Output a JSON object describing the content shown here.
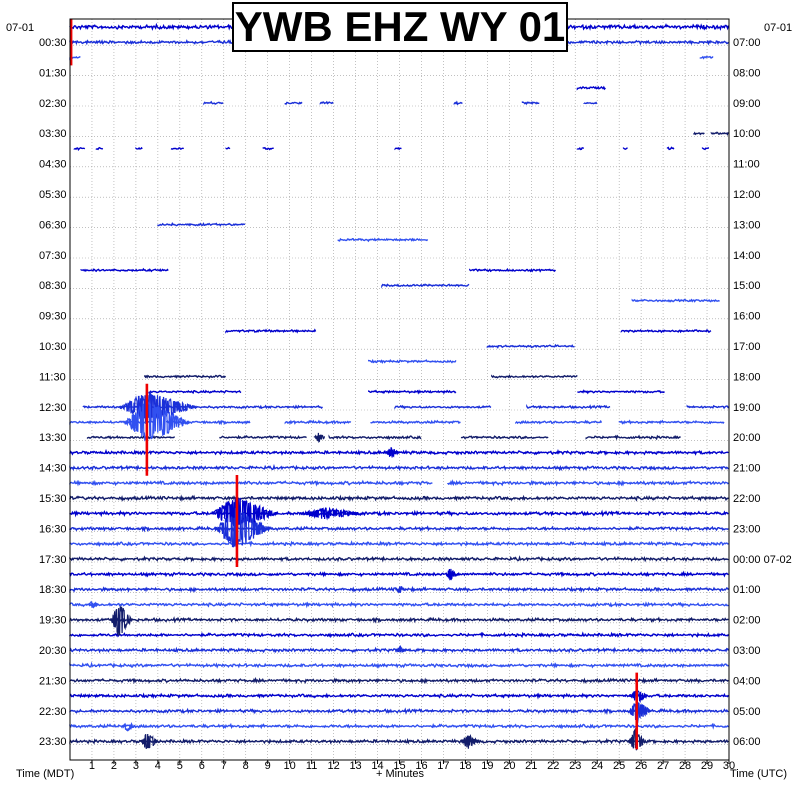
{
  "chart_data": {
    "type": "line",
    "title": "YWB EHZ WY 01",
    "left_axis_label": "Time (MDT)",
    "right_axis_label": "Time (UTC)",
    "bottom_axis_label": "+ Minutes",
    "left_date_label": "07-01",
    "right_date_label": "07-01",
    "x_ticks": [
      "1",
      "2",
      "3",
      "4",
      "5",
      "6",
      "7",
      "8",
      "9",
      "10",
      "11",
      "12",
      "13",
      "14",
      "15",
      "16",
      "17",
      "18",
      "19",
      "20",
      "21",
      "22",
      "23",
      "24",
      "25",
      "26",
      "27",
      "28",
      "29",
      "30"
    ],
    "x_range": [
      0,
      30
    ],
    "left_ticks": [
      "00:30",
      "01:30",
      "02:30",
      "03:30",
      "04:30",
      "05:30",
      "06:30",
      "07:30",
      "08:30",
      "09:30",
      "10:30",
      "11:30",
      "12:30",
      "13:30",
      "14:30",
      "15:30",
      "16:30",
      "17:30",
      "18:30",
      "19:30",
      "20:30",
      "21:30",
      "22:30",
      "23:30"
    ],
    "right_ticks": [
      "07:00",
      "08:00",
      "09:00",
      "10:00",
      "11:00",
      "12:00",
      "13:00",
      "14:00",
      "15:00",
      "16:00",
      "17:00",
      "18:00",
      "19:00",
      "20:00",
      "21:00",
      "22:00",
      "23:00",
      "00:00 07-02",
      "01:00",
      "02:00",
      "03:00",
      "04:00",
      "05:00",
      "06:00"
    ],
    "grid": true,
    "row_minutes": 30,
    "row_count": 48,
    "trace_colors": [
      "#0000cc",
      "#1a2fd8",
      "#3150f0",
      "#121c6a"
    ],
    "clip_marker_color": "#ee0000",
    "rows": [
      {
        "segments": [
          [
            0,
            30
          ]
        ],
        "amp": 1.6
      },
      {
        "segments": [
          [
            0,
            30
          ]
        ],
        "amp": 1.2
      },
      {
        "segments": [
          [
            0,
            0.5
          ],
          [
            28.7,
            29.3
          ]
        ],
        "amp": 0.9
      },
      {
        "segments": [],
        "amp": 0
      },
      {
        "segments": [
          [
            23.1,
            24.4
          ]
        ],
        "amp": 0.9
      },
      {
        "segments": [
          [
            6.1,
            7.0
          ],
          [
            9.8,
            10.6
          ],
          [
            11.4,
            12.0
          ],
          [
            17.5,
            17.9
          ],
          [
            20.6,
            21.4
          ],
          [
            23.4,
            24.0
          ]
        ],
        "amp": 0.9
      },
      {
        "segments": [],
        "amp": 0
      },
      {
        "segments": [
          [
            28.4,
            28.9
          ],
          [
            29.2,
            30
          ]
        ],
        "amp": 0.9
      },
      {
        "segments": [
          [
            0.2,
            0.7
          ],
          [
            1.2,
            1.5
          ],
          [
            3.0,
            3.3
          ],
          [
            4.6,
            5.2
          ],
          [
            7.1,
            7.3
          ],
          [
            8.8,
            9.3
          ],
          [
            14.8,
            15.1
          ],
          [
            23.1,
            23.4
          ],
          [
            25.2,
            25.4
          ],
          [
            27.2,
            27.5
          ],
          [
            28.8,
            29.1
          ]
        ],
        "amp": 0.9
      },
      {
        "segments": [],
        "amp": 0
      },
      {
        "segments": [],
        "amp": 0
      },
      {
        "segments": [],
        "amp": 0
      },
      {
        "segments": [],
        "amp": 0
      },
      {
        "segments": [
          [
            4.0,
            8.0
          ]
        ],
        "amp": 0.9
      },
      {
        "segments": [
          [
            12.2,
            16.3
          ]
        ],
        "amp": 0.9
      },
      {
        "segments": [],
        "amp": 0
      },
      {
        "segments": [
          [
            0.5,
            4.5
          ],
          [
            18.2,
            22.1
          ]
        ],
        "amp": 0.9
      },
      {
        "segments": [
          [
            14.2,
            18.2
          ]
        ],
        "amp": 0.9
      },
      {
        "segments": [
          [
            25.6,
            29.6
          ]
        ],
        "amp": 0.9
      },
      {
        "segments": [],
        "amp": 0
      },
      {
        "segments": [
          [
            7.1,
            11.2
          ],
          [
            25.1,
            29.2
          ]
        ],
        "amp": 0.9
      },
      {
        "segments": [
          [
            19.0,
            23.0
          ]
        ],
        "amp": 0.9
      },
      {
        "segments": [
          [
            13.6,
            17.6
          ]
        ],
        "amp": 0.9
      },
      {
        "segments": [
          [
            3.4,
            7.1
          ],
          [
            19.2,
            23.1
          ]
        ],
        "amp": 0.9
      },
      {
        "segments": [
          [
            3.6,
            7.8
          ],
          [
            13.6,
            17.6
          ],
          [
            23.1,
            27.1
          ]
        ],
        "amp": 0.9
      },
      {
        "segments": [
          [
            0.6,
            11.5
          ],
          [
            14.8,
            19.2
          ],
          [
            20.8,
            24.6
          ],
          [
            28.1,
            30
          ]
        ],
        "amp": 0.9
      },
      {
        "segments": [
          [
            0,
            3.8
          ],
          [
            4.4,
            8.2
          ],
          [
            9.8,
            12.8
          ],
          [
            13.7,
            17.8
          ],
          [
            20.3,
            24.2
          ],
          [
            25.0,
            29.8
          ]
        ],
        "amp": 1.0
      },
      {
        "segments": [
          [
            0.8,
            4.8
          ],
          [
            6.8,
            10.8
          ],
          [
            11.8,
            16.0
          ],
          [
            17.8,
            21.8
          ],
          [
            23.5,
            27.8
          ]
        ],
        "amp": 1.0
      },
      {
        "segments": [
          [
            0,
            30
          ]
        ],
        "amp": 1.2
      },
      {
        "segments": [
          [
            0,
            30
          ]
        ],
        "amp": 1.2
      },
      {
        "segments": [
          [
            0,
            16.5
          ],
          [
            17.2,
            30
          ]
        ],
        "amp": 1.3
      },
      {
        "segments": [
          [
            0,
            30
          ]
        ],
        "amp": 1.3
      },
      {
        "segments": [
          [
            0,
            30
          ]
        ],
        "amp": 1.3
      },
      {
        "segments": [
          [
            0,
            30
          ]
        ],
        "amp": 1.2
      },
      {
        "segments": [
          [
            0,
            30
          ]
        ],
        "amp": 1.2
      },
      {
        "segments": [
          [
            0,
            30
          ]
        ],
        "amp": 1.2
      },
      {
        "segments": [
          [
            0,
            30
          ]
        ],
        "amp": 1.2
      },
      {
        "segments": [
          [
            0,
            30
          ]
        ],
        "amp": 1.2
      },
      {
        "segments": [
          [
            0,
            30
          ]
        ],
        "amp": 1.2
      },
      {
        "segments": [
          [
            0,
            30
          ]
        ],
        "amp": 1.2
      },
      {
        "segments": [
          [
            0,
            30
          ]
        ],
        "amp": 1.2
      },
      {
        "segments": [
          [
            0,
            30
          ]
        ],
        "amp": 1.2
      },
      {
        "segments": [
          [
            0,
            30
          ]
        ],
        "amp": 1.2
      },
      {
        "segments": [
          [
            0,
            30
          ]
        ],
        "amp": 1.2
      },
      {
        "segments": [
          [
            0,
            30
          ]
        ],
        "amp": 1.2
      },
      {
        "segments": [
          [
            0,
            30
          ]
        ],
        "amp": 1.2
      },
      {
        "segments": [
          [
            0,
            30
          ]
        ],
        "amp": 1.2
      },
      {
        "segments": [
          [
            0,
            30
          ]
        ],
        "amp": 1.2
      }
    ],
    "events": [
      {
        "row": 1,
        "minute": 14.0,
        "amp": 6,
        "duration": 1.2
      },
      {
        "row": 1,
        "minute": 17.3,
        "amp": 5,
        "duration": 0.4
      },
      {
        "row": 25,
        "minute": 3.5,
        "amp": 16,
        "duration": 3.5
      },
      {
        "row": 26,
        "minute": 3.5,
        "amp": 22,
        "duration": 3.0
      },
      {
        "row": 27,
        "minute": 11.3,
        "amp": 5,
        "duration": 0.5
      },
      {
        "row": 28,
        "minute": 14.6,
        "amp": 6,
        "duration": 0.6
      },
      {
        "row": 32,
        "minute": 7.5,
        "amp": 18,
        "duration": 3.0
      },
      {
        "row": 33,
        "minute": 7.5,
        "amp": 22,
        "duration": 2.5
      },
      {
        "row": 32,
        "minute": 11.5,
        "amp": 6,
        "duration": 3.0
      },
      {
        "row": 36,
        "minute": 17.3,
        "amp": 6,
        "duration": 0.6
      },
      {
        "row": 37,
        "minute": 15.0,
        "amp": 4,
        "duration": 0.5
      },
      {
        "row": 39,
        "minute": 2.2,
        "amp": 18,
        "duration": 1.0
      },
      {
        "row": 38,
        "minute": 1.0,
        "amp": 4,
        "duration": 0.5
      },
      {
        "row": 41,
        "minute": 15.0,
        "amp": 4,
        "duration": 0.5
      },
      {
        "row": 44,
        "minute": 25.8,
        "amp": 8,
        "duration": 0.8
      },
      {
        "row": 45,
        "minute": 25.8,
        "amp": 14,
        "duration": 1.0
      },
      {
        "row": 46,
        "minute": 2.6,
        "amp": 5,
        "duration": 0.6
      },
      {
        "row": 47,
        "minute": 3.5,
        "amp": 10,
        "duration": 0.8
      },
      {
        "row": 47,
        "minute": 18.1,
        "amp": 8,
        "duration": 0.8
      },
      {
        "row": 47,
        "minute": 25.7,
        "amp": 12,
        "duration": 0.8
      }
    ],
    "clip_markers": [
      {
        "row_start": 0,
        "row_end": 2,
        "minute": 0.05
      },
      {
        "row_start": 24,
        "row_end": 29,
        "minute": 3.5
      },
      {
        "row_start": 30,
        "row_end": 35,
        "minute": 7.6
      },
      {
        "row_start": 43,
        "row_end": 47,
        "minute": 25.8
      }
    ]
  }
}
